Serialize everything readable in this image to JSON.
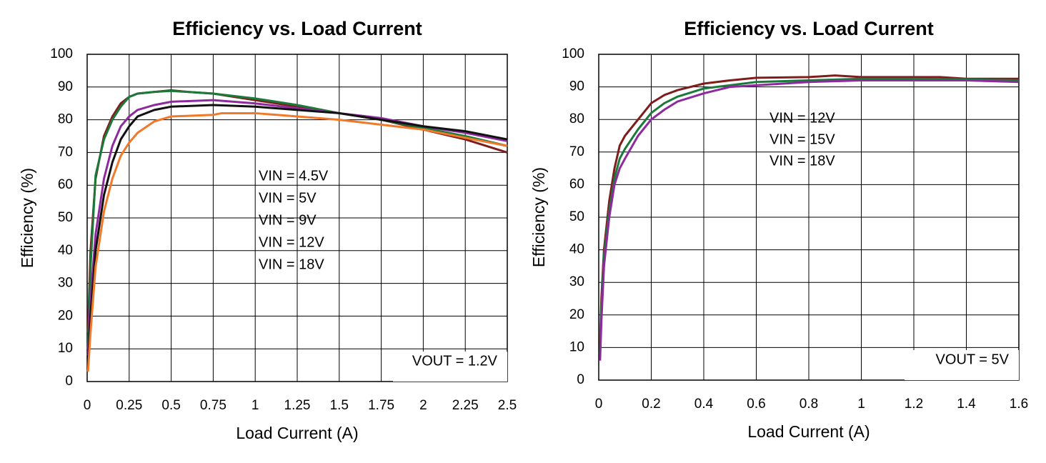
{
  "chart_data": [
    {
      "type": "line",
      "title": "Efficiency vs. Load Current",
      "xlabel": "Load Current (A)",
      "ylabel": "Efficiency (%)",
      "annotation": "VOUT = 1.2V",
      "xlim": [
        0,
        2.5
      ],
      "xticks": [
        0,
        0.25,
        0.5,
        0.75,
        1,
        1.25,
        1.5,
        1.75,
        2,
        2.25,
        2.5
      ],
      "ylim": [
        0,
        100
      ],
      "yticks": [
        0,
        10,
        20,
        30,
        40,
        50,
        60,
        70,
        80,
        90,
        100
      ],
      "grid": true,
      "series": [
        {
          "name": "VIN = 4.5V",
          "color": "#7f1d1d",
          "x": [
            0.005,
            0.02,
            0.05,
            0.1,
            0.15,
            0.2,
            0.25,
            0.3,
            0.4,
            0.5,
            0.6,
            0.75,
            1,
            1.25,
            1.5,
            1.75,
            2,
            2.25,
            2.5
          ],
          "values": [
            15,
            40,
            62,
            75,
            81,
            85,
            87,
            88,
            88.5,
            89,
            88.5,
            88,
            86,
            84,
            82,
            80,
            77,
            74,
            70
          ]
        },
        {
          "name": "VIN = 5V",
          "color": "#1a7a3a",
          "x": [
            0.005,
            0.02,
            0.05,
            0.1,
            0.15,
            0.2,
            0.25,
            0.3,
            0.4,
            0.5,
            0.6,
            0.75,
            1,
            1.25,
            1.5,
            1.75,
            2,
            2.25,
            2.5
          ],
          "values": [
            10,
            35,
            63,
            74,
            80,
            84,
            87,
            88,
            88.5,
            88.8,
            88.5,
            88,
            86.5,
            84.5,
            82,
            80,
            77.5,
            75,
            72
          ]
        },
        {
          "name": "VIN = 9V",
          "color": "#8e2a9e",
          "x": [
            0.005,
            0.02,
            0.05,
            0.1,
            0.15,
            0.2,
            0.25,
            0.3,
            0.4,
            0.5,
            0.75,
            1,
            1.25,
            1.5,
            1.75,
            2,
            2.25,
            2.5
          ],
          "values": [
            8,
            25,
            45,
            62,
            72,
            78,
            81,
            83,
            84.5,
            85.5,
            86,
            85,
            83.5,
            82,
            80.5,
            78,
            76,
            73.5
          ]
        },
        {
          "name": "VIN = 12V",
          "color": "#111111",
          "x": [
            0.005,
            0.02,
            0.05,
            0.1,
            0.15,
            0.2,
            0.25,
            0.3,
            0.4,
            0.5,
            0.75,
            1,
            1.25,
            1.5,
            1.75,
            2,
            2.25,
            2.5
          ],
          "values": [
            5,
            20,
            40,
            57,
            67,
            74,
            78,
            81,
            83,
            84,
            84.5,
            84,
            83,
            82,
            80,
            78,
            76.5,
            74
          ]
        },
        {
          "name": "VIN = 18V",
          "color": "#f07a2a",
          "x": [
            0.005,
            0.02,
            0.05,
            0.1,
            0.15,
            0.2,
            0.25,
            0.3,
            0.4,
            0.5,
            0.75,
            0.8,
            1,
            1.25,
            1.5,
            1.75,
            2,
            2.25,
            2.5
          ],
          "values": [
            3,
            15,
            35,
            52,
            62,
            69,
            73,
            76,
            79.5,
            81,
            81.5,
            82,
            82,
            81,
            80,
            78.5,
            77,
            74.5,
            72
          ]
        }
      ]
    },
    {
      "type": "line",
      "title": "Efficiency vs. Load Current",
      "xlabel": "Load Current (A)",
      "ylabel": "Efficiency (%)",
      "annotation": "VOUT = 5V",
      "xlim": [
        0,
        1.6
      ],
      "xticks": [
        0,
        0.2,
        0.4,
        0.6,
        0.8,
        1,
        1.2,
        1.4,
        1.6
      ],
      "ylim": [
        0,
        100
      ],
      "yticks": [
        0,
        10,
        20,
        30,
        40,
        50,
        60,
        70,
        80,
        90,
        100
      ],
      "grid": true,
      "series": [
        {
          "name": "VIN = 12V",
          "color": "#7f1d1d",
          "x": [
            0.005,
            0.01,
            0.02,
            0.04,
            0.06,
            0.08,
            0.1,
            0.15,
            0.2,
            0.25,
            0.3,
            0.4,
            0.5,
            0.6,
            0.8,
            0.9,
            1,
            1.2,
            1.3,
            1.4,
            1.6
          ],
          "values": [
            10,
            25,
            40,
            55,
            65,
            72,
            75,
            80,
            85,
            87.5,
            89,
            91,
            92,
            92.8,
            93,
            93.5,
            93,
            93,
            93,
            92.5,
            92.5
          ]
        },
        {
          "name": "VIN = 15V",
          "color": "#1a7a3a",
          "x": [
            0.005,
            0.01,
            0.02,
            0.04,
            0.06,
            0.08,
            0.1,
            0.15,
            0.2,
            0.25,
            0.3,
            0.4,
            0.5,
            0.6,
            0.8,
            1,
            1.2,
            1.4,
            1.6
          ],
          "values": [
            8,
            22,
            38,
            52,
            62,
            68,
            71,
            77,
            82,
            85,
            87,
            89.5,
            90.5,
            91.5,
            92,
            92.5,
            92.5,
            92.3,
            92
          ]
        },
        {
          "name": "VIN = 18V",
          "color": "#8e2a9e",
          "x": [
            0.005,
            0.01,
            0.02,
            0.04,
            0.06,
            0.08,
            0.1,
            0.15,
            0.2,
            0.25,
            0.3,
            0.4,
            0.5,
            0.6,
            0.8,
            1,
            1.2,
            1.4,
            1.6
          ],
          "values": [
            6,
            18,
            35,
            50,
            60,
            65,
            68,
            75,
            80,
            83,
            85.5,
            88,
            90,
            90.5,
            91.5,
            92,
            92,
            92,
            91.5
          ]
        }
      ]
    }
  ]
}
